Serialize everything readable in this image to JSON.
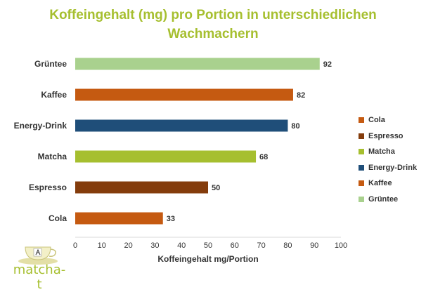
{
  "chart_data": {
    "type": "bar",
    "orientation": "horizontal",
    "title_line1": "Koffeingehalt (mg) pro Portion in unterschiedlichen",
    "title_line2": "Wachmachern",
    "xlabel": "Koffeingehalt mg/Portion",
    "ylabel": "",
    "xlim": [
      0,
      100
    ],
    "xticks": [
      "0",
      "10",
      "20",
      "30",
      "40",
      "50",
      "60",
      "70",
      "80",
      "90",
      "100"
    ],
    "xtick_values": [
      0,
      10,
      20,
      30,
      40,
      50,
      60,
      70,
      80,
      90,
      100
    ],
    "categories": [
      "Grüntee",
      "Kaffee",
      "Energy-Drink",
      "Matcha",
      "Espresso",
      "Cola"
    ],
    "values": [
      92,
      82,
      80,
      68,
      50,
      33
    ],
    "value_labels": [
      "92",
      "82",
      "80",
      "68",
      "50",
      "33"
    ],
    "colors": [
      "#a9d18e",
      "#c55a11",
      "#1f4e79",
      "#a6bf2f",
      "#843c0c",
      "#c55a11"
    ],
    "grid": false,
    "legend_position": "right",
    "legend": [
      {
        "label": "Cola",
        "color": "#c55a11"
      },
      {
        "label": "Espresso",
        "color": "#843c0c"
      },
      {
        "label": "Matcha",
        "color": "#a6bf2f"
      },
      {
        "label": "Energy-Drink",
        "color": "#1f4e79"
      },
      {
        "label": "Kaffee",
        "color": "#c55a11"
      },
      {
        "label": "Grüntee",
        "color": "#a9d18e"
      }
    ]
  },
  "logo": {
    "text": "matcha-t",
    "icon": "tea-cup-icon"
  },
  "colors": {
    "title": "#a6bf2f",
    "text": "#333333",
    "axis": "#d9d9d9"
  }
}
